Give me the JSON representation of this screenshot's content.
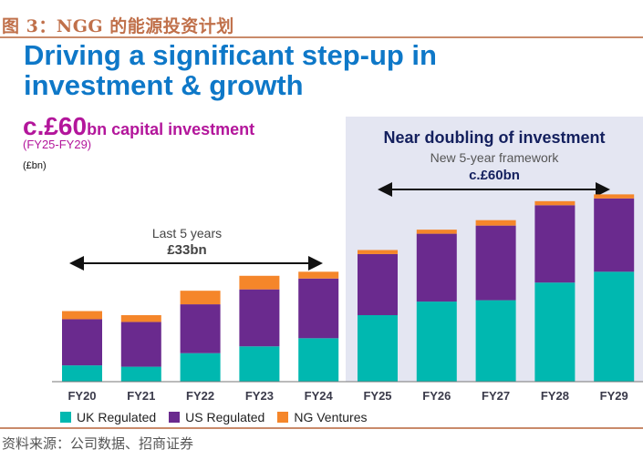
{
  "figure_title": "图 3：NGG 的能源投资计划",
  "headline_line1": "Driving a significant step-up in",
  "headline_line2": "investment & growth",
  "capex_big": "c.£60",
  "capex_rest": "bn capital investment",
  "period": "(FY25-FY29)",
  "unit": "(£bn)",
  "forecast_panel": {
    "title": "Near doubling of investment",
    "subtitle": "New 5-year framework",
    "total": "c.£60bn"
  },
  "history_annotation": {
    "label": "Last 5 years",
    "total": "£33bn"
  },
  "source": "资料来源：公司数据、招商证券",
  "colors": {
    "uk": "#00b8b0",
    "us": "#6a2a8e",
    "ng": "#f5862a"
  },
  "chart_data": {
    "type": "bar",
    "stacked": true,
    "title": "c.£60bn capital investment (FY25-FY29)",
    "ylabel": "(£bn)",
    "xlabel": "",
    "ylim": [
      0,
      14.5
    ],
    "grid": false,
    "legend": "bottom-left",
    "categories": [
      "FY20",
      "FY21",
      "FY22",
      "FY23",
      "FY24",
      "FY25",
      "FY26",
      "FY27",
      "FY28",
      "FY29"
    ],
    "series": [
      {
        "name": "UK Regulated",
        "values": [
          1.2,
          1.1,
          2.1,
          2.6,
          3.2,
          4.9,
          5.9,
          6.0,
          7.3,
          8.1
        ]
      },
      {
        "name": "US Regulated",
        "values": [
          3.4,
          3.3,
          3.6,
          4.2,
          4.4,
          4.5,
          5.0,
          5.5,
          5.7,
          5.4
        ]
      },
      {
        "name": "NG Ventures",
        "values": [
          0.6,
          0.5,
          1.0,
          1.0,
          0.5,
          0.3,
          0.3,
          0.4,
          0.3,
          0.3
        ]
      }
    ]
  }
}
